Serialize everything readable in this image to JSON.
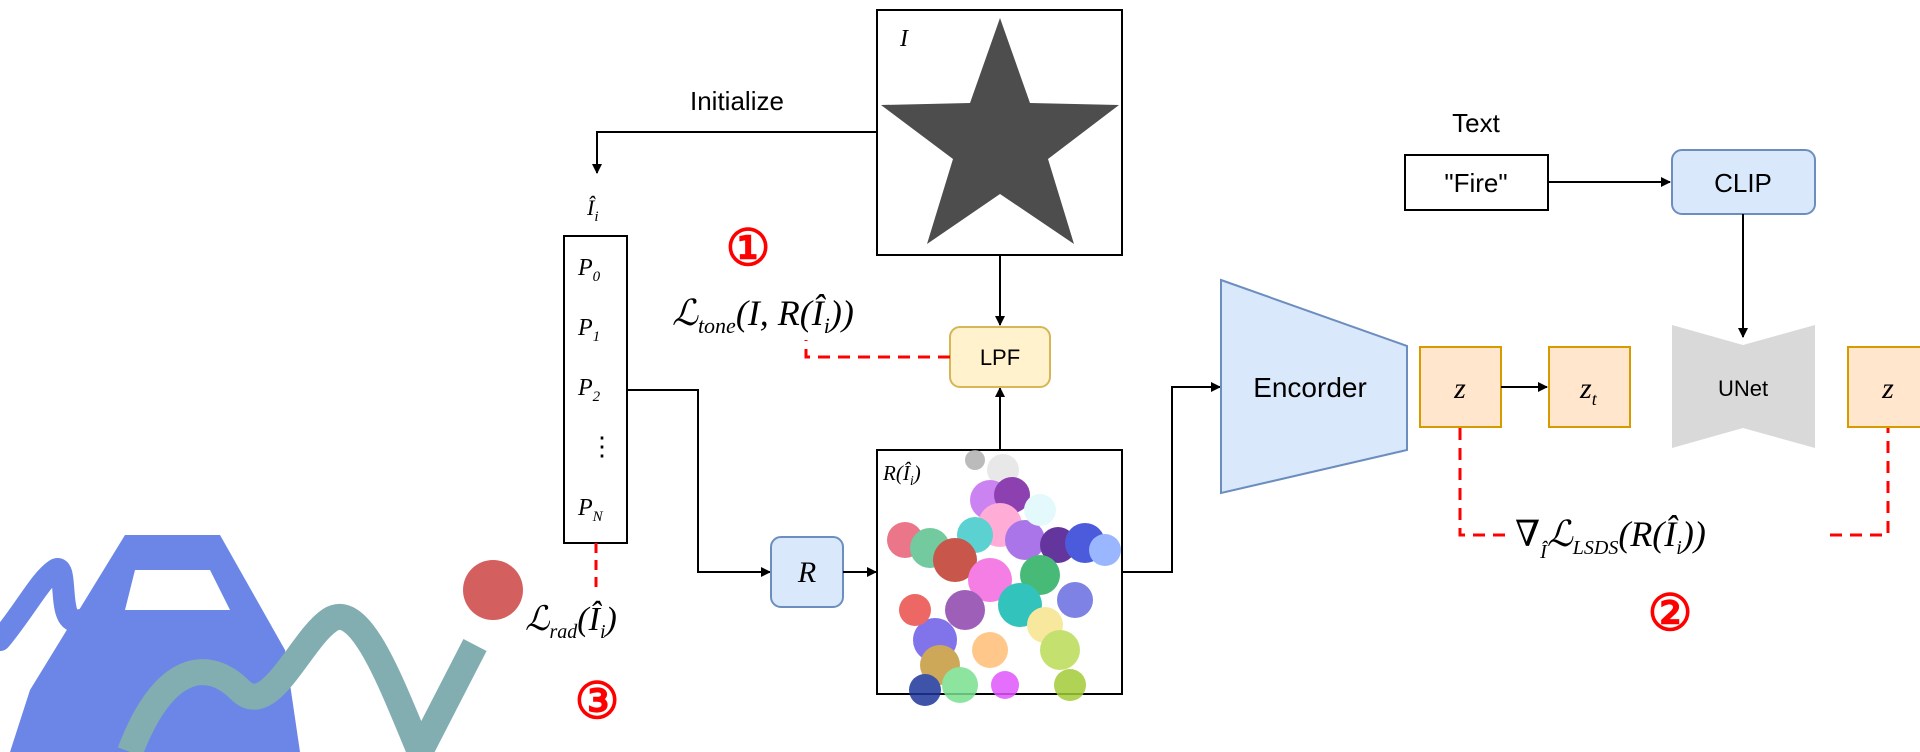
{
  "initialize_label": "Initialize",
  "image_label": "I",
  "param_label": "Î",
  "param_label_sub": "i",
  "params": [
    {
      "base": "P",
      "sub": "0"
    },
    {
      "base": "P",
      "sub": "1"
    },
    {
      "base": "P",
      "sub": "2"
    },
    {
      "base": "⋮",
      "sub": ""
    },
    {
      "base": "P",
      "sub": "N"
    }
  ],
  "renderer_label": "R",
  "render_image_label": "R(Î",
  "render_image_label_sub": "i",
  "render_image_label_close": ")",
  "lpf_label": "LPF",
  "encoder_label": "Encorder",
  "text_label": "Text",
  "prompt_label": "\"Fire\"",
  "clip_label": "CLIP",
  "unet_label": "UNet",
  "z_label": "z",
  "zt_label": "z",
  "zt_sub": "t",
  "z_right_label": "z",
  "loss_tone_main": "ℒ",
  "loss_tone_sub": "tone",
  "loss_tone_args": "(I, R(Î",
  "loss_tone_args_sub": "i",
  "loss_tone_args_close": "))",
  "loss_lsds_grad": "∇",
  "loss_lsds_grad_sub": "Î",
  "loss_lsds_main": "ℒ",
  "loss_lsds_sub": "LSDS",
  "loss_lsds_args": "(R(Î",
  "loss_lsds_args_sub": "i",
  "loss_lsds_args_close": "))",
  "loss_rad_main": "ℒ",
  "loss_rad_sub": "rad",
  "loss_rad_args": "(Î",
  "loss_rad_args_sub": "i",
  "loss_rad_args_close": ")",
  "marker_1": "①",
  "marker_2": "②",
  "marker_3": "③",
  "colors": {
    "blue_fill": "#dae8fc",
    "blue_stroke": "#6c8ebf",
    "yellow_fill": "#fff2cc",
    "yellow_stroke": "#d6b656",
    "orange_fill": "#ffe6cc",
    "orange_stroke": "#d79b00",
    "unet_fill": "#d9d9d9",
    "star_fill": "#4d4d4d",
    "red": "#ff0000"
  }
}
